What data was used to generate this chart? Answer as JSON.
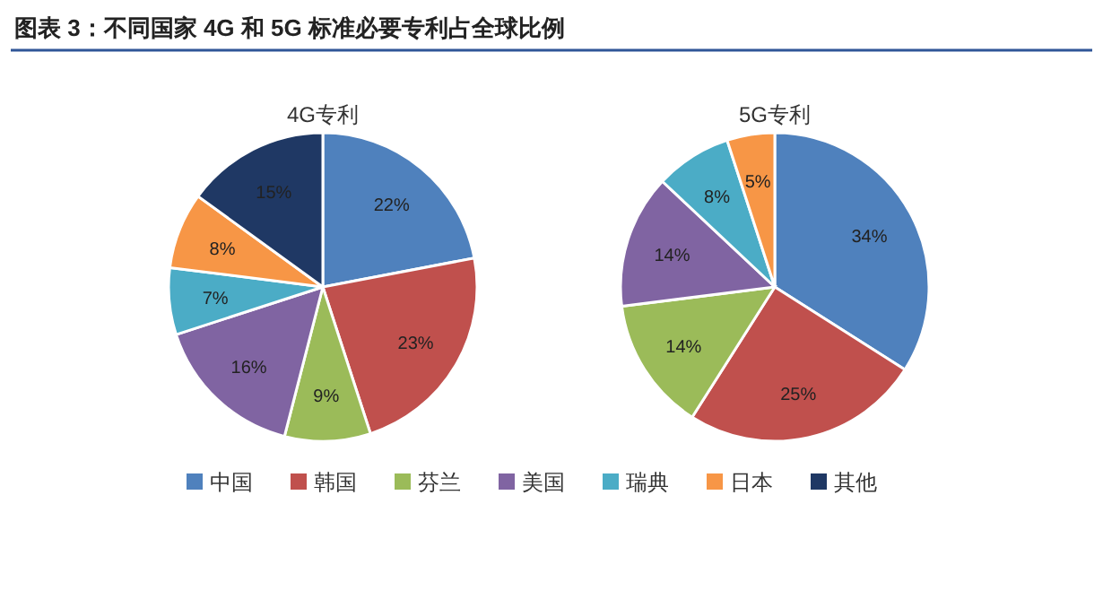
{
  "chart_data": [
    {
      "type": "pie",
      "title": "图表 3：不同国家 4G 和 5G 标准必要专利占全球比例",
      "subtitle": "4G专利",
      "categories": [
        "中国",
        "韩国",
        "芬兰",
        "美国",
        "瑞典",
        "日本",
        "其他"
      ],
      "values": [
        22,
        23,
        9,
        16,
        7,
        8,
        15
      ],
      "value_labels": [
        "22%",
        "23%",
        "9%",
        "16%",
        "7%",
        "8%",
        "15%"
      ],
      "colors": [
        "#4f81bd",
        "#c0504d",
        "#9bbb59",
        "#8064a2",
        "#4bacc6",
        "#f79646",
        "#1f3864"
      ],
      "legend": "bottom"
    },
    {
      "type": "pie",
      "subtitle": "5G专利",
      "categories": [
        null,
        null,
        null,
        null,
        null,
        null
      ],
      "values": [
        34,
        25,
        14,
        14,
        8,
        5
      ],
      "value_labels": [
        "34%",
        "25%",
        "14%",
        "14%",
        "8%",
        "5%"
      ],
      "colors": [
        "#4f81bd",
        "#c0504d",
        "#9bbb59",
        "#8064a2",
        "#4bacc6",
        "#f79646"
      ]
    }
  ]
}
